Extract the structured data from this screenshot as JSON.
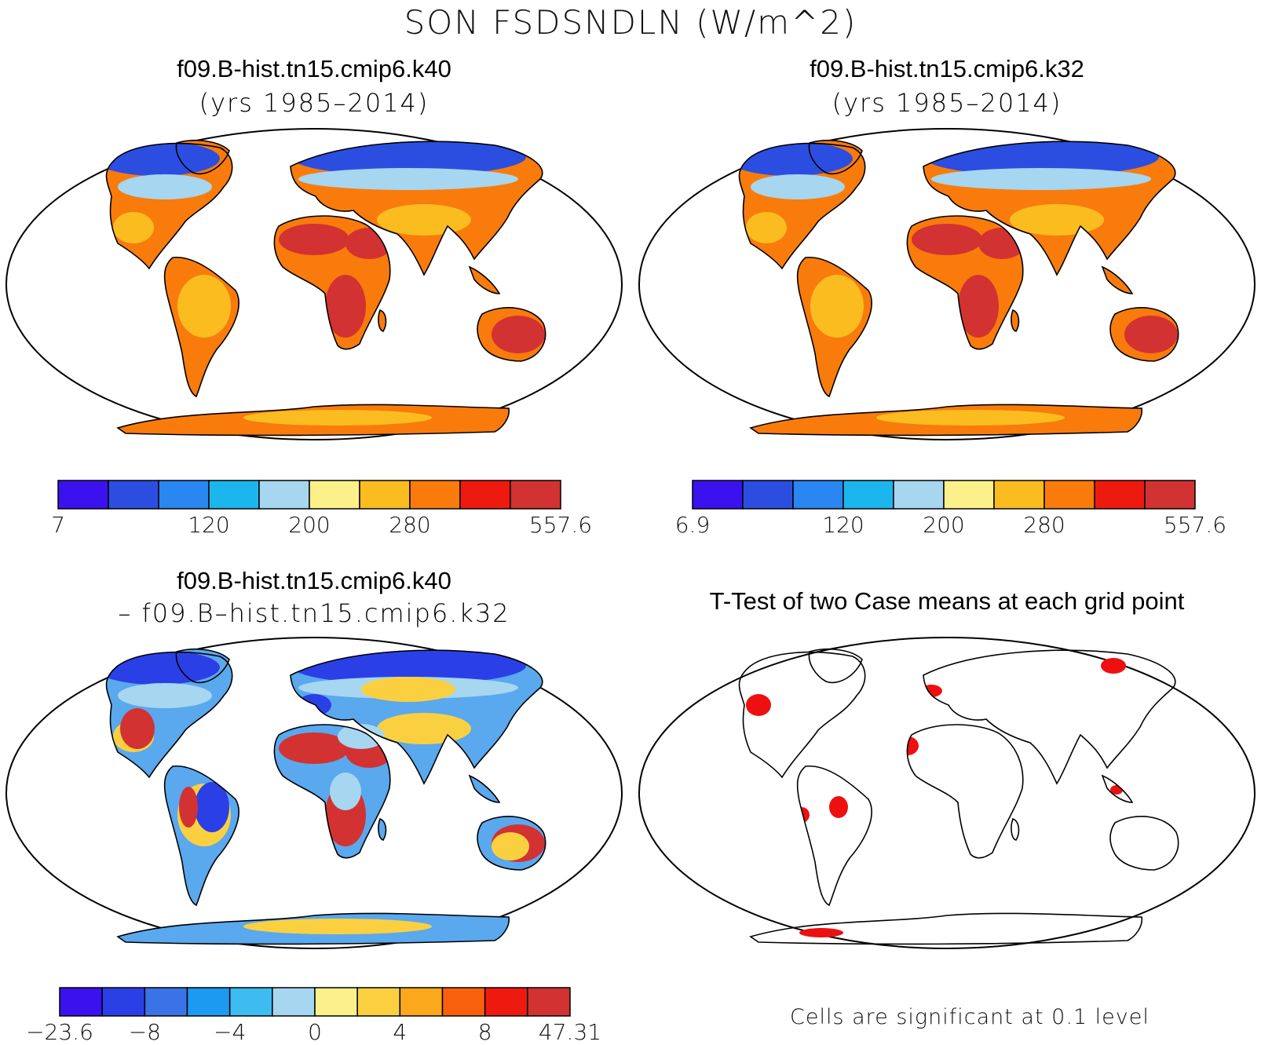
{
  "figure": {
    "main_title": "SON FSDSNDLN (W/m^2)"
  },
  "panels": [
    {
      "id": "case1",
      "title_line1": "f09.B-hist.tn15.cmip6.k40",
      "title_line2": "(yrs 1985–2014)"
    },
    {
      "id": "case2",
      "title_line1": "f09.B-hist.tn15.cmip6.k32",
      "title_line2": "(yrs 1985–2014)"
    },
    {
      "id": "difference",
      "title_line1": "f09.B-hist.tn15.cmip6.k40",
      "title_line2": "– f09.B–hist.tn15.cmip6.k32"
    },
    {
      "id": "ttest",
      "title_line1": "T-Test of two Case means at each grid point",
      "note": "Cells are significant at 0.1 level"
    }
  ],
  "colorbars": {
    "case1": {
      "colors": [
        "#3a12ee",
        "#2c4ee0",
        "#2a86f0",
        "#1bb6ee",
        "#a6d6f0",
        "#fbf08a",
        "#fbbc20",
        "#f97b0c",
        "#ee1a10",
        "#d23232"
      ],
      "tick_labels": [
        {
          "text": "7",
          "boundary": 0
        },
        {
          "text": "120",
          "boundary": 3
        },
        {
          "text": "200",
          "boundary": 5
        },
        {
          "text": "280",
          "boundary": 7
        },
        {
          "text": "557.6",
          "boundary": 10
        }
      ]
    },
    "case2": {
      "colors": [
        "#3a12ee",
        "#2c4ee0",
        "#2a86f0",
        "#1bb6ee",
        "#a6d6f0",
        "#fbf08a",
        "#fbbc20",
        "#f97b0c",
        "#ee1a10",
        "#d23232"
      ],
      "tick_labels": [
        {
          "text": "6.9",
          "boundary": 0
        },
        {
          "text": "120",
          "boundary": 3
        },
        {
          "text": "200",
          "boundary": 5
        },
        {
          "text": "280",
          "boundary": 7
        },
        {
          "text": "557.6",
          "boundary": 10
        }
      ]
    },
    "difference": {
      "colors": [
        "#3a12ee",
        "#2a40e6",
        "#3a72e8",
        "#1c9af2",
        "#3cbcf0",
        "#a6d6f0",
        "#fbf08a",
        "#fbd040",
        "#fba81c",
        "#f9600c",
        "#ee1a10",
        "#d23232"
      ],
      "tick_labels": [
        {
          "text": "−23.6",
          "boundary": 0
        },
        {
          "text": "−8",
          "boundary": 2
        },
        {
          "text": "−4",
          "boundary": 4
        },
        {
          "text": "0",
          "boundary": 6
        },
        {
          "text": "4",
          "boundary": 8
        },
        {
          "text": "8",
          "boundary": 10
        },
        {
          "text": "47.31",
          "boundary": 12
        }
      ]
    }
  },
  "palette": {
    "land_cold": "#2c4ee0",
    "land_mid": "#a6d6f0",
    "land_warm": "#fbbc20",
    "land_hot": "#d23232",
    "significant": "#ee1010",
    "coastline": "#000000"
  }
}
